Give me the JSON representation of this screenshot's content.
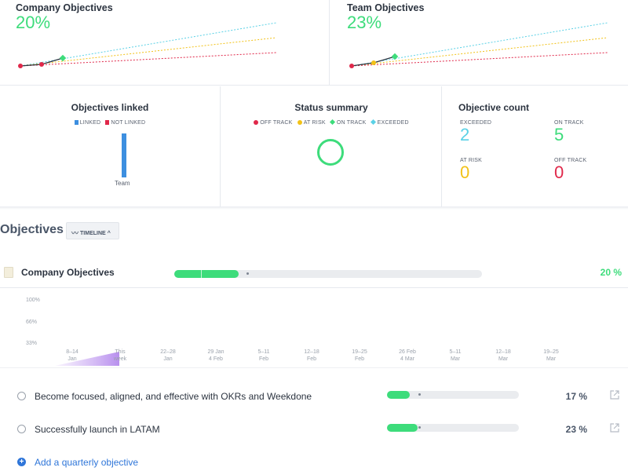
{
  "colors": {
    "green": "#3ddc7b",
    "red": "#e0284a",
    "yellow": "#f2c218",
    "teal": "#5ad1e6",
    "blue": "#3d8fe0",
    "accent_blue": "#2f76d9"
  },
  "top_cards": [
    {
      "title": "Company Objectives",
      "percent": "20%",
      "value": 20
    },
    {
      "title": "Team Objectives",
      "percent": "23%",
      "value": 23
    }
  ],
  "objectives_linked": {
    "title": "Objectives linked",
    "legend": [
      "LINKED",
      "NOT LINKED"
    ],
    "bar_label": "Team",
    "linked_fraction": 1.0
  },
  "status_summary": {
    "title": "Status summary",
    "legend": [
      "OFF TRACK",
      "AT RISK",
      "ON TRACK",
      "EXCEEDED"
    ]
  },
  "objective_count": {
    "title": "Objective count",
    "items": [
      {
        "label": "EXCEEDED",
        "value": "2"
      },
      {
        "label": "ON TRACK",
        "value": "5"
      },
      {
        "label": "AT RISK",
        "value": "0"
      },
      {
        "label": "OFF TRACK",
        "value": "0"
      }
    ]
  },
  "objectives_section": {
    "heading": "Objectives",
    "view_button": "TIMELINE",
    "company_row": {
      "title": "Company Objectives",
      "percent": "20 %",
      "progress": 0.2
    },
    "timeline": {
      "y_labels": [
        "100%",
        "66%",
        "33%"
      ],
      "x_labels": [
        [
          "8–14",
          "Jan"
        ],
        [
          "This",
          "week"
        ],
        [
          "22–28",
          "Jan"
        ],
        [
          "29 Jan",
          "4 Feb"
        ],
        [
          "5–11",
          "Feb"
        ],
        [
          "12–18",
          "Feb"
        ],
        [
          "19–25",
          "Feb"
        ],
        [
          "26 Feb",
          "4 Mar"
        ],
        [
          "5–11",
          "Mar"
        ],
        [
          "12–18",
          "Mar"
        ],
        [
          "19–25",
          "Mar"
        ]
      ]
    },
    "quarterly": [
      {
        "title": "Become focused, aligned, and effective with OKRs and Weekdone",
        "percent": "17 %",
        "progress": 0.17
      },
      {
        "title": "Successfully launch in LATAM",
        "percent": "23 %",
        "progress": 0.23
      }
    ],
    "add_label": "Add a quarterly objective"
  }
}
